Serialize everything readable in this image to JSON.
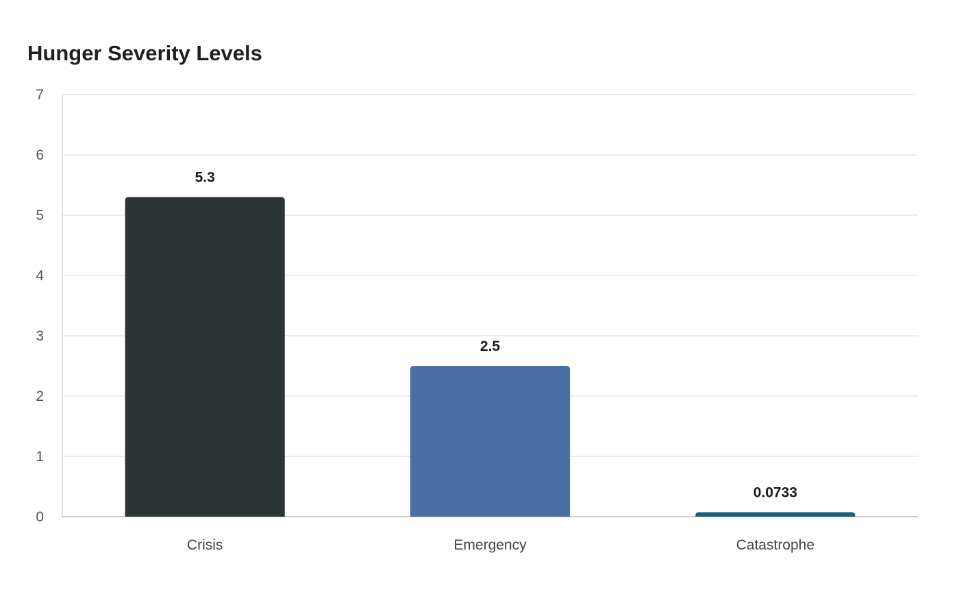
{
  "chart_data": {
    "type": "bar",
    "title": "Hunger Severity Levels",
    "xlabel": "",
    "ylabel": "",
    "categories": [
      "Crisis",
      "Emergency",
      "Catastrophe"
    ],
    "values": [
      5.3,
      2.5,
      0.0733
    ],
    "value_labels": [
      "5.3",
      "2.5",
      "0.0733"
    ],
    "colors": [
      "#2d3436",
      "#4a6fa5",
      "#1b5e7e"
    ],
    "ylim": [
      0,
      7
    ],
    "yticks": [
      0,
      1,
      2,
      3,
      4,
      5,
      6,
      7
    ],
    "grid": true,
    "legend": "none"
  }
}
